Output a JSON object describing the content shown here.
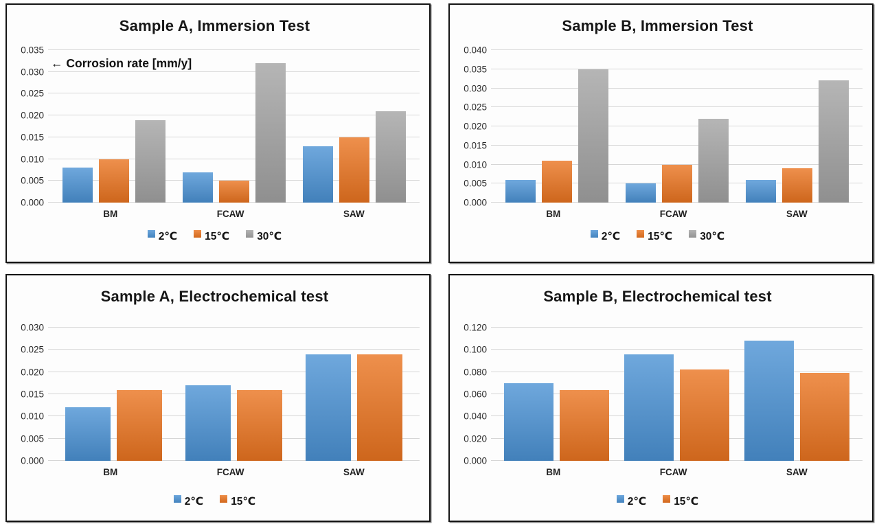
{
  "page": {
    "background": "#ffffff",
    "panel_border_color": "#141414",
    "gridline_color": "#d6d6d6"
  },
  "chart_data": [
    {
      "type": "bar",
      "title": "Sample A, Immersion Test",
      "annotation": "← Corrosion rate [mm/y]",
      "categories": [
        "BM",
        "FCAW",
        "SAW"
      ],
      "series": [
        {
          "name": "2℃",
          "color": "#4B92D4",
          "values": [
            0.008,
            0.007,
            0.013
          ]
        },
        {
          "name": "15℃",
          "color": "#EA7420",
          "values": [
            0.01,
            0.005,
            0.015
          ]
        },
        {
          "name": "30℃",
          "color": "#A3A3A3",
          "values": [
            0.019,
            0.032,
            0.021
          ]
        }
      ],
      "ylim": [
        0,
        0.035
      ],
      "tick_step": 0.005,
      "tick_decimals": 3,
      "grid": true,
      "legend_position": "bottom"
    },
    {
      "type": "bar",
      "title": "Sample B, Immersion Test",
      "annotation": null,
      "categories": [
        "BM",
        "FCAW",
        "SAW"
      ],
      "series": [
        {
          "name": "2℃",
          "color": "#4B92D4",
          "values": [
            0.006,
            0.005,
            0.006
          ]
        },
        {
          "name": "15℃",
          "color": "#EA7420",
          "values": [
            0.011,
            0.01,
            0.009
          ]
        },
        {
          "name": "30℃",
          "color": "#A3A3A3",
          "values": [
            0.035,
            0.022,
            0.032
          ]
        }
      ],
      "ylim": [
        0,
        0.04
      ],
      "tick_step": 0.005,
      "tick_decimals": 3,
      "grid": true,
      "legend_position": "bottom"
    },
    {
      "type": "bar",
      "title": "Sample A, Electrochemical test",
      "annotation": null,
      "categories": [
        "BM",
        "FCAW",
        "SAW"
      ],
      "series": [
        {
          "name": "2℃",
          "color": "#4B92D4",
          "values": [
            0.012,
            0.017,
            0.024
          ]
        },
        {
          "name": "15℃",
          "color": "#EA7420",
          "values": [
            0.016,
            0.016,
            0.024
          ]
        }
      ],
      "ylim": [
        0,
        0.03
      ],
      "tick_step": 0.005,
      "tick_decimals": 3,
      "grid": true,
      "legend_position": "bottom"
    },
    {
      "type": "bar",
      "title": "Sample B, Electrochemical test",
      "annotation": null,
      "categories": [
        "BM",
        "FCAW",
        "SAW"
      ],
      "series": [
        {
          "name": "2℃",
          "color": "#4B92D4",
          "values": [
            0.07,
            0.096,
            0.108
          ]
        },
        {
          "name": "15℃",
          "color": "#EA7420",
          "values": [
            0.064,
            0.082,
            0.079
          ]
        }
      ],
      "ylim": [
        0,
        0.12
      ],
      "tick_step": 0.02,
      "tick_decimals": 3,
      "grid": true,
      "legend_position": "bottom"
    }
  ]
}
